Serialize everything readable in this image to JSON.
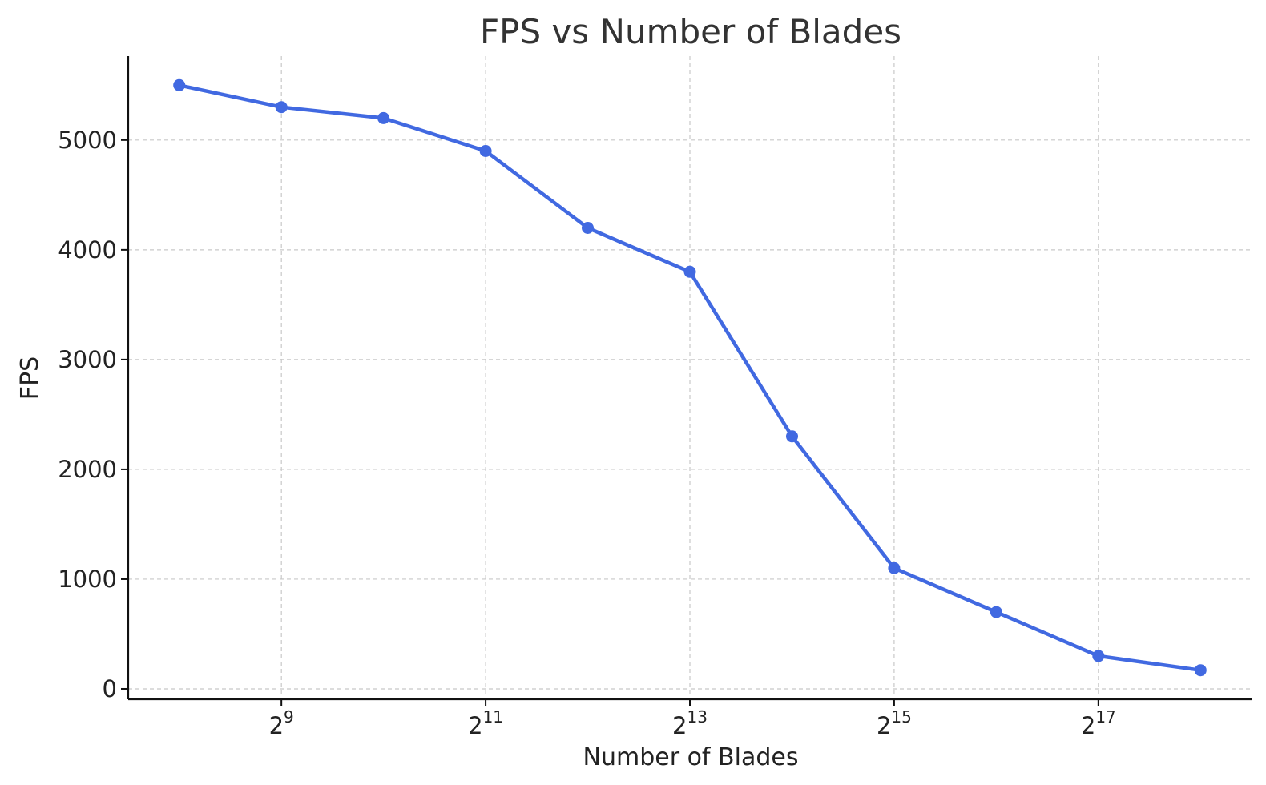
{
  "chart_data": {
    "type": "line",
    "title": "FPS vs Number of Blades",
    "xlabel": "Number of Blades",
    "ylabel": "FPS",
    "x_scale": "log2",
    "x": [
      256,
      512,
      1024,
      2048,
      4096,
      8192,
      16384,
      32768,
      65536,
      131072,
      262144
    ],
    "series": [
      {
        "values": [
          5500,
          5300,
          5200,
          4900,
          4200,
          3800,
          2300,
          1100,
          700,
          300,
          170
        ]
      }
    ],
    "xticks": [
      {
        "base": "2",
        "exp": "9",
        "value": 512
      },
      {
        "base": "2",
        "exp": "11",
        "value": 2048
      },
      {
        "base": "2",
        "exp": "13",
        "value": 8192
      },
      {
        "base": "2",
        "exp": "15",
        "value": 32768
      },
      {
        "base": "2",
        "exp": "17",
        "value": 131072
      }
    ],
    "yticks": [
      "0",
      "1000",
      "2000",
      "3000",
      "4000",
      "5000"
    ],
    "ylim": [
      -95,
      5765
    ],
    "xlim_exp": [
      7.5,
      18.5
    ],
    "grid": true,
    "line_color": "#4169e1"
  }
}
